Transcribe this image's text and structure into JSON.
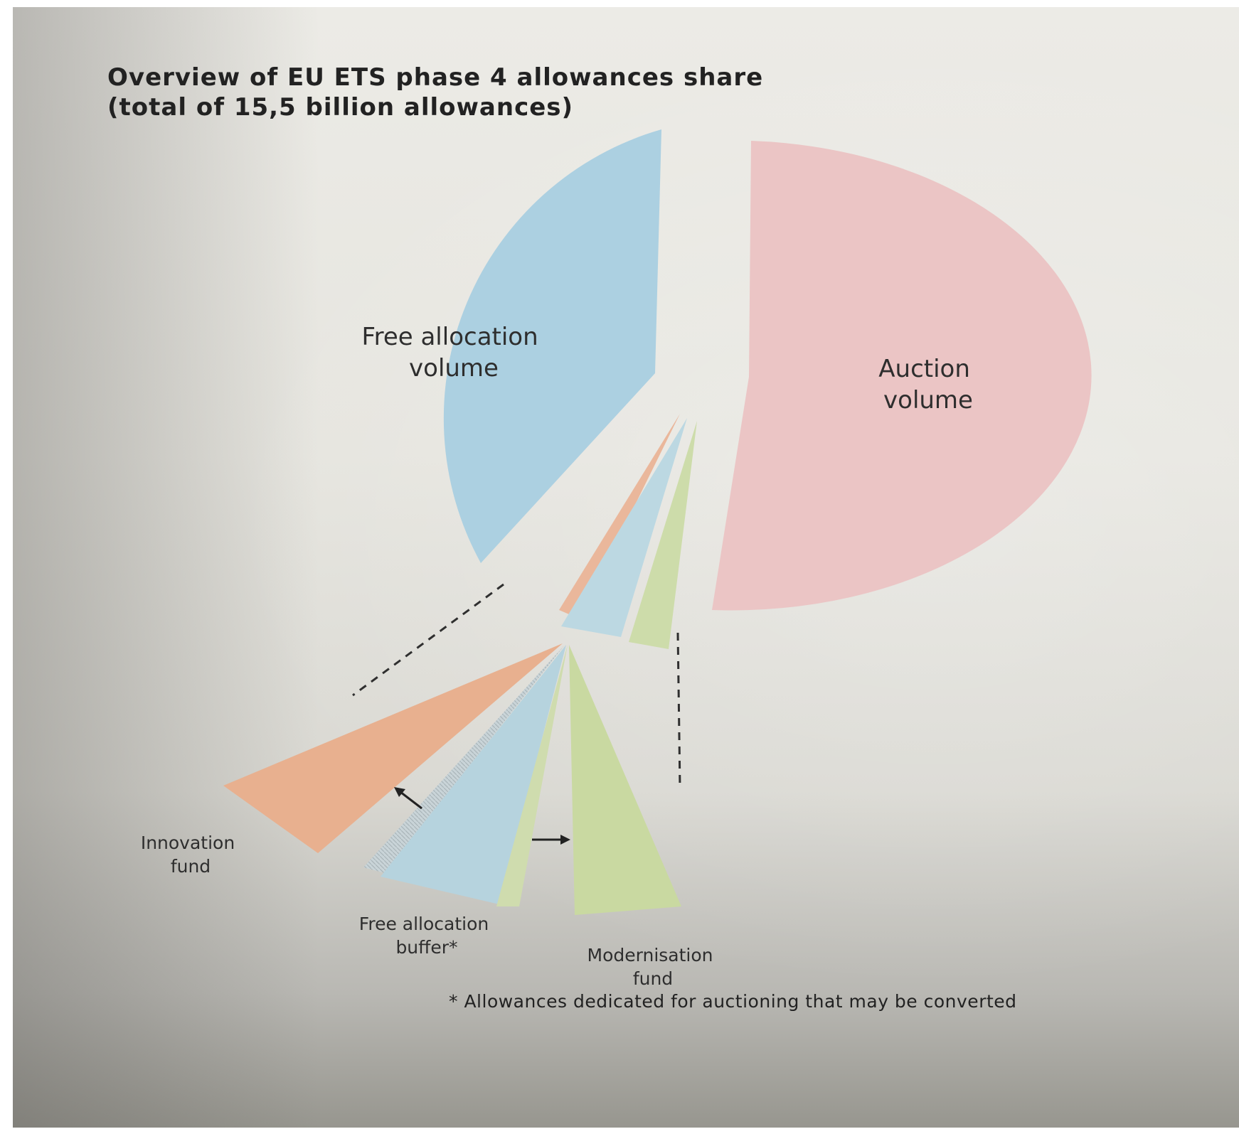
{
  "title_line1": "Overview of EU ETS phase 4 allowances share",
  "title_line2": "(total of 15,5 billion allowances)",
  "footnote": "* Allowances dedicated for auctioning that may be converted",
  "chart_data": {
    "type": "pie",
    "title": "Overview of EU ETS phase 4 allowances share (total of 15,5 billion allowances)",
    "slices": [
      {
        "label": "Free allocation volume",
        "share_percent": 40.5,
        "color": "#a9cfe0"
      },
      {
        "label": "Innovation fund",
        "share_percent": 2.8,
        "color": "#eab79b"
      },
      {
        "label": "Free allocation buffer*",
        "share_percent": 2.7,
        "color": "#bcd8e2"
      },
      {
        "label": "Modernisation fund",
        "share_percent": 2.0,
        "color": "#cddcaa"
      },
      {
        "label": "Auction volume",
        "share_percent": 52.0,
        "color": "#ebc3c3"
      }
    ],
    "labels": {
      "free": [
        "Free allocation",
        "volume"
      ],
      "auction": [
        "Auction",
        "volume"
      ],
      "innovation": [
        "Innovation",
        "fund"
      ],
      "buffer": [
        "Free allocation",
        "buffer*"
      ],
      "modernisation": [
        "Modernisation",
        "fund"
      ]
    }
  }
}
